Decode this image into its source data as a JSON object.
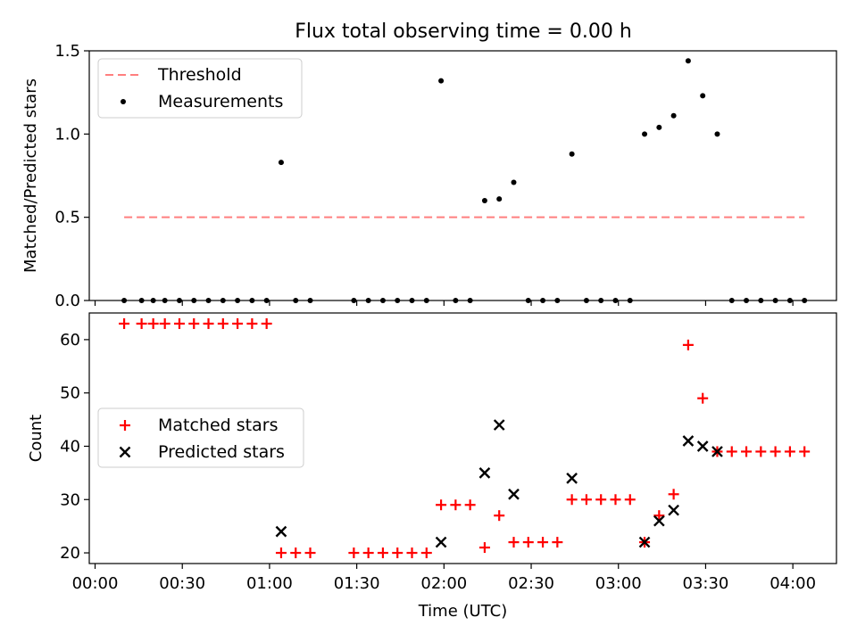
{
  "chart_data": [
    {
      "type": "scatter",
      "title": "Flux total observing time = 0.00 h",
      "ylabel": "Matched/Predicted stars",
      "ylim": [
        0,
        1.5
      ],
      "yticks": [
        0.0,
        0.5,
        1.0,
        1.5
      ],
      "ytick_labels": [
        "0.0",
        "0.5",
        "1.0",
        "1.5"
      ],
      "legend_position": "top-left",
      "threshold": {
        "name": "Threshold",
        "value": 0.5,
        "x_start": "00:10",
        "x_end": "04:04",
        "color": "#ff7f7f",
        "style": "dashed"
      },
      "series": [
        {
          "name": "Measurements",
          "color": "#000000",
          "marker": "dot",
          "x": [
            "00:10",
            "00:16",
            "00:20",
            "00:24",
            "00:29",
            "00:34",
            "00:39",
            "00:44",
            "00:49",
            "00:54",
            "00:59",
            "01:04",
            "01:09",
            "01:14",
            "01:29",
            "01:34",
            "01:39",
            "01:44",
            "01:49",
            "01:54",
            "01:59",
            "02:04",
            "02:09",
            "02:14",
            "02:19",
            "02:24",
            "02:29",
            "02:34",
            "02:39",
            "02:44",
            "02:49",
            "02:54",
            "02:59",
            "03:04",
            "03:09",
            "03:14",
            "03:19",
            "03:24",
            "03:29",
            "03:34",
            "03:39",
            "03:44",
            "03:49",
            "03:54",
            "03:59",
            "04:04"
          ],
          "y": [
            0,
            0,
            0,
            0,
            0,
            0,
            0,
            0,
            0,
            0,
            0,
            0.83,
            0,
            0,
            0,
            0,
            0,
            0,
            0,
            0,
            1.32,
            0,
            0,
            0.6,
            0.61,
            0.71,
            0,
            0,
            0,
            0.88,
            0,
            0,
            0,
            0,
            1.0,
            1.04,
            1.11,
            1.44,
            1.23,
            1.0,
            0,
            0,
            0,
            0,
            0,
            0
          ]
        }
      ]
    },
    {
      "type": "scatter",
      "xlabel": "Time (UTC)",
      "ylabel": "Count",
      "ylim": [
        18,
        65
      ],
      "yticks": [
        20,
        30,
        40,
        50,
        60
      ],
      "ytick_labels": [
        "20",
        "30",
        "40",
        "50",
        "60"
      ],
      "xlim": [
        "-00:02",
        "04:15"
      ],
      "xticks": [
        "00:00",
        "00:30",
        "01:00",
        "01:30",
        "02:00",
        "02:30",
        "03:00",
        "03:30",
        "04:00"
      ],
      "legend_position": "center-left",
      "series": [
        {
          "name": "Matched stars",
          "color": "#ff0000",
          "marker": "plus",
          "x": [
            "00:10",
            "00:16",
            "00:20",
            "00:24",
            "00:29",
            "00:34",
            "00:39",
            "00:44",
            "00:49",
            "00:54",
            "00:59",
            "01:04",
            "01:09",
            "01:14",
            "01:29",
            "01:34",
            "01:39",
            "01:44",
            "01:49",
            "01:54",
            "01:59",
            "02:04",
            "02:09",
            "02:14",
            "02:19",
            "02:24",
            "02:29",
            "02:34",
            "02:39",
            "02:44",
            "02:49",
            "02:54",
            "02:59",
            "03:04",
            "03:09",
            "03:14",
            "03:19",
            "03:24",
            "03:29",
            "03:34",
            "03:39",
            "03:44",
            "03:49",
            "03:54",
            "03:59",
            "04:04"
          ],
          "y": [
            63,
            63,
            63,
            63,
            63,
            63,
            63,
            63,
            63,
            63,
            63,
            20,
            20,
            20,
            20,
            20,
            20,
            20,
            20,
            20,
            29,
            29,
            29,
            21,
            27,
            22,
            22,
            22,
            22,
            30,
            30,
            30,
            30,
            30,
            22,
            27,
            31,
            59,
            49,
            39,
            39,
            39,
            39,
            39,
            39,
            39
          ]
        },
        {
          "name": "Predicted stars",
          "color": "#000000",
          "marker": "x",
          "x": [
            "01:04",
            "01:59",
            "02:14",
            "02:19",
            "02:24",
            "02:44",
            "03:09",
            "03:14",
            "03:19",
            "03:24",
            "03:29",
            "03:34"
          ],
          "y": [
            24,
            22,
            35,
            44,
            31,
            34,
            22,
            26,
            28,
            41,
            40,
            39
          ]
        }
      ]
    }
  ]
}
